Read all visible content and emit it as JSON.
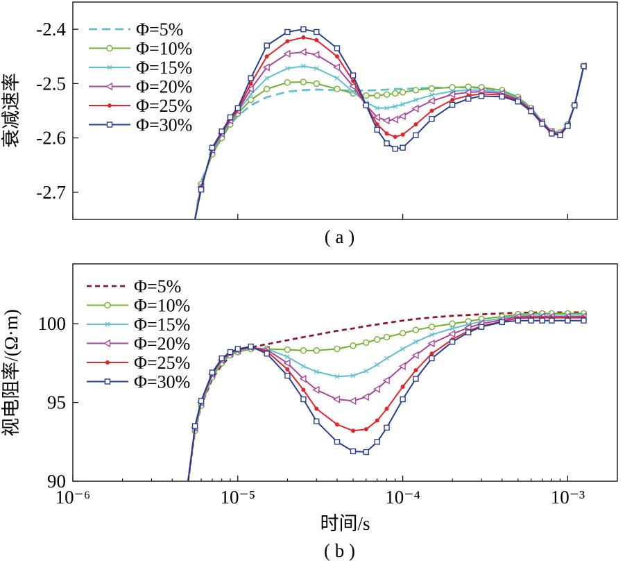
{
  "chart_data": [
    {
      "id": "a",
      "type": "line",
      "panel_label": "( a )",
      "title": "",
      "xlabel": "",
      "ylabel": "衰减速率",
      "x_scale": "log",
      "xlim": [
        1e-06,
        0.002
      ],
      "ylim": [
        -2.75,
        -2.35
      ],
      "yticks": [
        -2.7,
        -2.6,
        -2.5,
        -2.4
      ],
      "ytick_labels": [
        "-2.7",
        "-2.6",
        "-2.5",
        "-2.4"
      ],
      "xtick_labels_shown": false,
      "grid": false,
      "legend_position": "top-left",
      "x": [
        5.5e-06,
        6e-06,
        7e-06,
        8e-06,
        9e-06,
        1e-05,
        1.2e-05,
        1.5e-05,
        2e-05,
        2.5e-05,
        3e-05,
        4e-05,
        5e-05,
        6e-05,
        7e-05,
        8e-05,
        9e-05,
        0.0001,
        0.00012,
        0.00015,
        0.0002,
        0.00025,
        0.0003,
        0.0004,
        0.0005,
        0.0006,
        0.0007,
        0.0008,
        0.0009,
        0.001,
        0.0011,
        0.00125
      ],
      "series": [
        {
          "name": "Φ=5%",
          "color": "#5bc0d0",
          "style": "dashed",
          "marker": "none",
          "values": [
            -2.75,
            -2.68,
            -2.63,
            -2.6,
            -2.575,
            -2.56,
            -2.54,
            -2.525,
            -2.515,
            -2.512,
            -2.511,
            -2.512,
            -2.513,
            -2.513,
            -2.512,
            -2.511,
            -2.51,
            -2.51,
            -2.509,
            -2.508,
            -2.507,
            -2.507,
            -2.508,
            -2.513,
            -2.525,
            -2.545,
            -2.57,
            -2.588,
            -2.59,
            -2.575,
            -2.54,
            -2.47
          ]
        },
        {
          "name": "Φ=10%",
          "color": "#72b02b",
          "style": "solid",
          "marker": "circle",
          "values": [
            -2.75,
            -2.685,
            -2.63,
            -2.6,
            -2.575,
            -2.555,
            -2.53,
            -2.51,
            -2.498,
            -2.497,
            -2.5,
            -2.51,
            -2.518,
            -2.522,
            -2.522,
            -2.52,
            -2.518,
            -2.516,
            -2.512,
            -2.509,
            -2.507,
            -2.506,
            -2.507,
            -2.512,
            -2.525,
            -2.545,
            -2.57,
            -2.588,
            -2.59,
            -2.575,
            -2.54,
            -2.468
          ]
        },
        {
          "name": "Φ=15%",
          "color": "#5bc0d0",
          "style": "solid",
          "marker": "x",
          "values": [
            -2.75,
            -2.688,
            -2.625,
            -2.595,
            -2.57,
            -2.552,
            -2.52,
            -2.49,
            -2.472,
            -2.468,
            -2.472,
            -2.49,
            -2.515,
            -2.535,
            -2.545,
            -2.545,
            -2.542,
            -2.538,
            -2.53,
            -2.521,
            -2.514,
            -2.512,
            -2.512,
            -2.515,
            -2.527,
            -2.546,
            -2.57,
            -2.588,
            -2.591,
            -2.575,
            -2.54,
            -2.468
          ]
        },
        {
          "name": "Φ=20%",
          "color": "#a8449c",
          "style": "solid",
          "marker": "triangle",
          "values": [
            -2.75,
            -2.69,
            -2.622,
            -2.592,
            -2.568,
            -2.55,
            -2.51,
            -2.47,
            -2.445,
            -2.442,
            -2.447,
            -2.47,
            -2.505,
            -2.54,
            -2.562,
            -2.568,
            -2.566,
            -2.56,
            -2.546,
            -2.532,
            -2.52,
            -2.516,
            -2.515,
            -2.518,
            -2.529,
            -2.548,
            -2.571,
            -2.589,
            -2.592,
            -2.576,
            -2.54,
            -2.468
          ]
        },
        {
          "name": "Φ=25%",
          "color": "#e0242a",
          "style": "solid",
          "marker": "dot",
          "values": [
            -2.75,
            -2.692,
            -2.62,
            -2.59,
            -2.565,
            -2.548,
            -2.5,
            -2.45,
            -2.422,
            -2.415,
            -2.42,
            -2.45,
            -2.495,
            -2.54,
            -2.575,
            -2.592,
            -2.598,
            -2.594,
            -2.575,
            -2.55,
            -2.53,
            -2.522,
            -2.519,
            -2.521,
            -2.531,
            -2.549,
            -2.572,
            -2.59,
            -2.593,
            -2.577,
            -2.54,
            -2.468
          ]
        },
        {
          "name": "Φ=30%",
          "color": "#243d94",
          "style": "solid",
          "marker": "square",
          "values": [
            -2.75,
            -2.695,
            -2.618,
            -2.588,
            -2.562,
            -2.545,
            -2.49,
            -2.43,
            -2.405,
            -2.4,
            -2.405,
            -2.435,
            -2.485,
            -2.54,
            -2.585,
            -2.61,
            -2.62,
            -2.618,
            -2.595,
            -2.565,
            -2.539,
            -2.528,
            -2.523,
            -2.524,
            -2.533,
            -2.551,
            -2.574,
            -2.592,
            -2.595,
            -2.578,
            -2.54,
            -2.468
          ]
        }
      ]
    },
    {
      "id": "b",
      "type": "line",
      "panel_label": "( b )",
      "title": "",
      "xlabel": "时间/s",
      "ylabel": "视电阻率/(Ω·m)",
      "x_scale": "log",
      "xlim": [
        1e-06,
        0.002
      ],
      "ylim": [
        90,
        103.8
      ],
      "yticks": [
        90,
        95,
        100
      ],
      "ytick_labels": [
        "90",
        "95",
        "100"
      ],
      "xtick_labels": [
        "10⁻⁶",
        "10⁻⁵",
        "10⁻⁴",
        "10⁻³"
      ],
      "grid": false,
      "legend_position": "top-left",
      "x": [
        5e-06,
        5.5e-06,
        6e-06,
        7e-06,
        8e-06,
        9e-06,
        1e-05,
        1.2e-05,
        1.5e-05,
        2e-05,
        2.5e-05,
        3e-05,
        4e-05,
        5e-05,
        6e-05,
        7e-05,
        8e-05,
        0.0001,
        0.00012,
        0.00015,
        0.0002,
        0.00025,
        0.0003,
        0.0004,
        0.0005,
        0.0006,
        0.0007,
        0.0008,
        0.001,
        0.00125
      ],
      "series": [
        {
          "name": "Φ=5%",
          "color": "#8b1a2b",
          "style": "dashed",
          "marker": "none",
          "values": [
            90,
            93.2,
            94.8,
            96.5,
            97.4,
            97.9,
            98.2,
            98.5,
            98.7,
            98.95,
            99.15,
            99.3,
            99.55,
            99.7,
            99.85,
            99.95,
            100.05,
            100.2,
            100.3,
            100.4,
            100.5,
            100.55,
            100.6,
            100.65,
            100.7,
            100.7,
            100.72,
            100.72,
            100.72,
            100.72
          ]
        },
        {
          "name": "Φ=10%",
          "color": "#72b02b",
          "style": "solid",
          "marker": "circle",
          "values": [
            90,
            93.2,
            94.8,
            96.6,
            97.5,
            98.0,
            98.2,
            98.4,
            98.4,
            98.35,
            98.3,
            98.3,
            98.4,
            98.6,
            98.8,
            99.0,
            99.15,
            99.4,
            99.6,
            99.8,
            100.0,
            100.15,
            100.3,
            100.45,
            100.6,
            100.65,
            100.65,
            100.65,
            100.65,
            100.65
          ]
        },
        {
          "name": "Φ=15%",
          "color": "#5bc0d0",
          "style": "solid",
          "marker": "x",
          "values": [
            90,
            93.3,
            94.9,
            96.7,
            97.6,
            98.05,
            98.25,
            98.45,
            98.4,
            97.9,
            97.3,
            96.95,
            96.65,
            96.7,
            97.0,
            97.4,
            97.8,
            98.4,
            98.85,
            99.3,
            99.7,
            99.95,
            100.15,
            100.35,
            100.5,
            100.55,
            100.55,
            100.55,
            100.55,
            100.55
          ]
        },
        {
          "name": "Φ=20%",
          "color": "#a8449c",
          "style": "solid",
          "marker": "triangle",
          "values": [
            90,
            93.4,
            95.0,
            96.8,
            97.7,
            98.1,
            98.3,
            98.5,
            98.35,
            97.5,
            96.5,
            95.8,
            95.2,
            95.1,
            95.35,
            95.85,
            96.4,
            97.3,
            98.0,
            98.75,
            99.35,
            99.75,
            100.0,
            100.25,
            100.45,
            100.45,
            100.45,
            100.45,
            100.45,
            100.45
          ]
        },
        {
          "name": "Φ=25%",
          "color": "#e0242a",
          "style": "solid",
          "marker": "dot",
          "values": [
            90,
            93.45,
            95.05,
            96.85,
            97.75,
            98.15,
            98.35,
            98.5,
            98.25,
            97.1,
            95.8,
            94.6,
            93.6,
            93.2,
            93.3,
            93.85,
            94.6,
            96.0,
            97.05,
            98.1,
            99.0,
            99.55,
            99.85,
            100.15,
            100.35,
            100.38,
            100.38,
            100.38,
            100.38,
            100.38
          ]
        },
        {
          "name": "Φ=30%",
          "color": "#243d94",
          "style": "solid",
          "marker": "square",
          "values": [
            90,
            93.5,
            95.1,
            96.9,
            97.8,
            98.2,
            98.4,
            98.55,
            98.1,
            96.7,
            95.2,
            93.8,
            92.5,
            91.9,
            91.85,
            92.5,
            93.4,
            95.2,
            96.5,
            97.8,
            98.85,
            99.45,
            99.8,
            100.1,
            100.2,
            100.2,
            100.2,
            100.2,
            100.2,
            100.2
          ]
        }
      ]
    }
  ]
}
